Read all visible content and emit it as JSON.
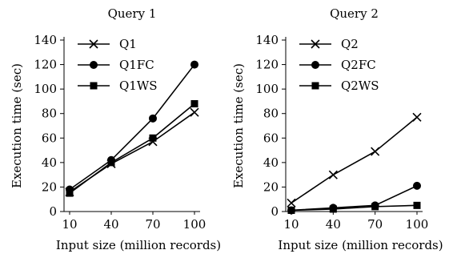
{
  "chart_data": [
    {
      "type": "line",
      "title": "Query 1",
      "xlabel": "Input size (million records)",
      "ylabel": "Execution time (sec)",
      "x": [
        10,
        40,
        70,
        100
      ],
      "ylim": [
        0,
        140
      ],
      "yticks": [
        0,
        20,
        40,
        60,
        80,
        100,
        120,
        140
      ],
      "grid": false,
      "legend": "top-left",
      "series": [
        {
          "name": "Q1",
          "marker": "x",
          "values": [
            16,
            39,
            57,
            81
          ]
        },
        {
          "name": "Q1FC",
          "marker": "circle",
          "values": [
            18,
            42,
            76,
            120
          ]
        },
        {
          "name": "Q1WS",
          "marker": "square",
          "values": [
            15,
            40,
            60,
            88
          ]
        }
      ]
    },
    {
      "type": "line",
      "title": "Query 2",
      "xlabel": "Input size (million records)",
      "ylabel": "Execution time (sec)",
      "x": [
        10,
        40,
        70,
        100
      ],
      "ylim": [
        0,
        140
      ],
      "yticks": [
        0,
        20,
        40,
        60,
        80,
        100,
        120,
        140
      ],
      "grid": false,
      "legend": "top-left",
      "series": [
        {
          "name": "Q2",
          "marker": "x",
          "values": [
            7,
            30,
            49,
            77
          ]
        },
        {
          "name": "Q2FC",
          "marker": "circle",
          "values": [
            1,
            3,
            5,
            21
          ]
        },
        {
          "name": "Q2WS",
          "marker": "square",
          "values": [
            1,
            2,
            4,
            5
          ]
        }
      ]
    }
  ]
}
